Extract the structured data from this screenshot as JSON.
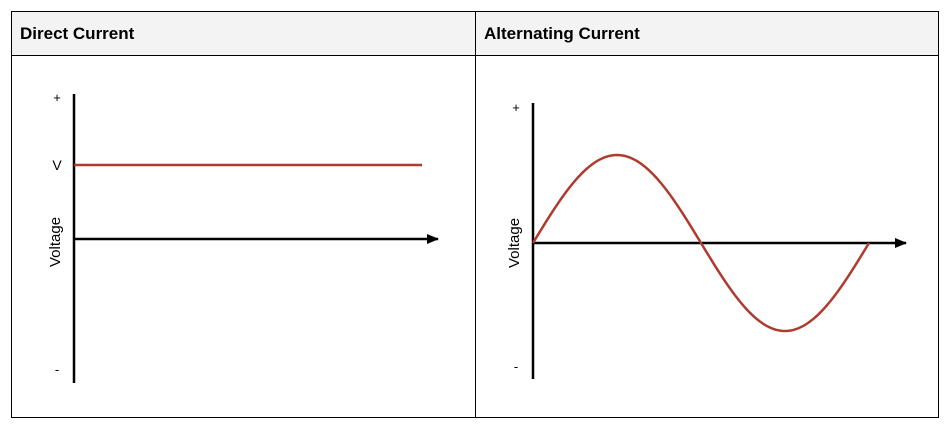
{
  "table": {
    "headers": {
      "direct": "Direct Current",
      "alternating": "Alternating Current"
    }
  },
  "dc": {
    "plus_label": "+",
    "minus_label": "-",
    "v_label": "V",
    "y_label": "Voltage",
    "signal_color": "#b03a2e",
    "axis_color": "#000000"
  },
  "ac": {
    "plus_label": "+",
    "minus_label": "-",
    "y_label": "Voltage",
    "signal_color": "#b03a2e",
    "axis_color": "#000000"
  }
}
